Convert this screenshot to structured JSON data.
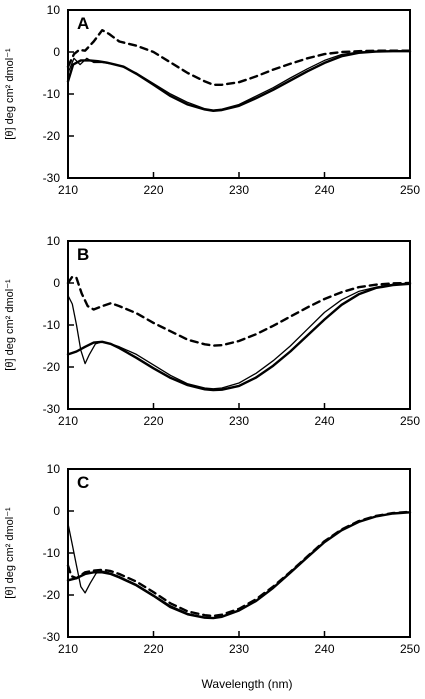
{
  "figure": {
    "xlabel": "Wavelength (nm)"
  },
  "chart_data": [
    {
      "type": "line",
      "panel_label": "A",
      "ylabel": "[θ] deg cm² dmol⁻¹",
      "xlim": [
        210,
        250
      ],
      "ylim": [
        -30,
        10
      ],
      "x_ticks": [
        210,
        220,
        230,
        240,
        250
      ],
      "y_ticks": [
        10,
        0,
        -10,
        -20,
        -30
      ],
      "grid": false,
      "series": [
        {
          "style": "dashed",
          "x": [
            210,
            210.7,
            211.3,
            212,
            213,
            214,
            214.8,
            216,
            218,
            220,
            222,
            224,
            226,
            227,
            228,
            230,
            232,
            234,
            236,
            238,
            240,
            242,
            244,
            246,
            248,
            250
          ],
          "y": [
            -3.5,
            -0.5,
            0.5,
            0.3,
            2.5,
            5.2,
            4.3,
            2.5,
            1.5,
            0,
            -2.5,
            -5,
            -7,
            -7.8,
            -7.8,
            -7.2,
            -5.8,
            -4.2,
            -2.8,
            -1.5,
            -0.5,
            0,
            0.2,
            0.3,
            0.3,
            0.3
          ]
        },
        {
          "style": "solid-thin",
          "x": [
            210,
            210.7,
            211.4,
            212.2,
            213,
            214,
            215,
            216,
            218,
            220,
            222,
            224,
            226,
            227,
            228,
            230,
            232,
            234,
            236,
            238,
            240,
            242,
            244,
            246,
            248,
            250
          ],
          "y": [
            -5,
            -1.5,
            -3,
            -1.5,
            -2.5,
            -2.5,
            -2.8,
            -3.2,
            -5,
            -7.5,
            -10,
            -12,
            -13.5,
            -13.8,
            -13.6,
            -12.5,
            -10.5,
            -8.5,
            -6.2,
            -4,
            -2,
            -0.6,
            0,
            0.2,
            0.2,
            0.2
          ]
        },
        {
          "style": "solid-thick",
          "x": [
            210,
            210.6,
            211.5,
            212.5,
            213.5,
            214.5,
            215.5,
            216.5,
            218,
            220,
            222,
            224,
            226,
            227,
            228,
            230,
            232,
            234,
            236,
            238,
            240,
            242,
            244,
            246,
            248,
            250
          ],
          "y": [
            -7,
            -3,
            -2,
            -2,
            -2.2,
            -2.5,
            -3,
            -3.5,
            -5.2,
            -7.8,
            -10.5,
            -12.5,
            -13.7,
            -14,
            -13.8,
            -12.8,
            -11,
            -9,
            -6.8,
            -4.6,
            -2.6,
            -1,
            -0.2,
            0.1,
            0.2,
            0.2
          ]
        }
      ]
    },
    {
      "type": "line",
      "panel_label": "B",
      "ylabel": "[θ] deg cm² dmol⁻¹",
      "xlim": [
        210,
        250
      ],
      "ylim": [
        -30,
        10
      ],
      "x_ticks": [
        210,
        220,
        230,
        240,
        250
      ],
      "y_ticks": [
        10,
        0,
        -10,
        -20,
        -30
      ],
      "grid": false,
      "series": [
        {
          "style": "dashed",
          "x": [
            210,
            210.5,
            211,
            211.6,
            212.3,
            213,
            214,
            215,
            216,
            218,
            220,
            222,
            224,
            226,
            227,
            228,
            230,
            232,
            234,
            236,
            238,
            240,
            242,
            244,
            246,
            248,
            250
          ],
          "y": [
            0,
            1.5,
            1.2,
            -2.5,
            -5.5,
            -6.3,
            -5.5,
            -4.8,
            -5.5,
            -7.2,
            -9.5,
            -11.5,
            -13.5,
            -14.6,
            -14.9,
            -14.8,
            -13.8,
            -12.2,
            -10.2,
            -8,
            -5.8,
            -3.8,
            -2.2,
            -1,
            -0.4,
            -0.1,
            0
          ]
        },
        {
          "style": "solid-thin",
          "x": [
            210,
            210.5,
            211,
            211.5,
            212,
            212.5,
            213.2,
            214,
            215,
            216,
            218,
            220,
            222,
            224,
            226,
            227,
            228,
            230,
            232,
            234,
            236,
            238,
            240,
            242,
            244,
            246,
            248,
            250
          ],
          "y": [
            -3,
            -5,
            -10,
            -16,
            -19.2,
            -17,
            -14.5,
            -14,
            -14.5,
            -15.2,
            -17,
            -19.5,
            -22,
            -24,
            -25,
            -25.2,
            -25,
            -23.8,
            -21.5,
            -18.5,
            -15,
            -11,
            -7,
            -4,
            -2,
            -1,
            -0.3,
            0
          ]
        },
        {
          "style": "solid-thick",
          "x": [
            210,
            211,
            212,
            213,
            214,
            215,
            216,
            218,
            220,
            222,
            224,
            226,
            227,
            228,
            230,
            232,
            234,
            236,
            238,
            240,
            242,
            244,
            246,
            248,
            250
          ],
          "y": [
            -17,
            -16.3,
            -15.2,
            -14.2,
            -14,
            -14.5,
            -15.5,
            -17.8,
            -20.3,
            -22.6,
            -24.3,
            -25.3,
            -25.5,
            -25.4,
            -24.5,
            -22.5,
            -19.7,
            -16.3,
            -12.5,
            -8.7,
            -5.2,
            -2.7,
            -1.2,
            -0.5,
            -0.2
          ]
        }
      ]
    },
    {
      "type": "line",
      "panel_label": "C",
      "ylabel": "[θ] deg cm² dmol⁻¹",
      "xlim": [
        210,
        250
      ],
      "ylim": [
        -30,
        10
      ],
      "x_ticks": [
        210,
        220,
        230,
        240,
        250
      ],
      "y_ticks": [
        10,
        0,
        -10,
        -20,
        -30
      ],
      "grid": false,
      "series": [
        {
          "style": "dashed",
          "x": [
            210,
            210.4,
            211,
            212,
            213,
            214,
            215,
            216,
            218,
            220,
            222,
            224,
            226,
            227,
            228,
            230,
            232,
            234,
            236,
            238,
            240,
            242,
            244,
            246,
            248,
            250
          ],
          "y": [
            -13,
            -15.5,
            -16,
            -14.6,
            -14.2,
            -14,
            -14.3,
            -15,
            -16.8,
            -19.3,
            -22,
            -23.9,
            -24.8,
            -25,
            -24.7,
            -23.3,
            -21,
            -18,
            -14.5,
            -10.8,
            -7.2,
            -4.4,
            -2.4,
            -1.2,
            -0.5,
            -0.2
          ]
        },
        {
          "style": "solid-thin",
          "x": [
            210,
            210.5,
            211,
            211.5,
            212,
            212.6,
            213.3,
            214,
            215,
            216,
            218,
            220,
            222,
            224,
            226,
            227,
            228,
            230,
            232,
            234,
            236,
            238,
            240,
            242,
            244,
            246,
            248,
            250
          ],
          "y": [
            -3,
            -8,
            -13,
            -18,
            -19.5,
            -17.2,
            -14.8,
            -14.3,
            -14.8,
            -15.6,
            -17.5,
            -20,
            -22.6,
            -24.4,
            -25.3,
            -25.4,
            -25.1,
            -23.6,
            -21.3,
            -18.2,
            -14.6,
            -10.9,
            -7.3,
            -4.5,
            -2.5,
            -1.3,
            -0.6,
            -0.3
          ]
        },
        {
          "style": "solid-thick",
          "x": [
            210,
            211,
            212,
            213,
            214,
            215,
            216,
            218,
            220,
            222,
            224,
            226,
            227,
            228,
            230,
            232,
            234,
            236,
            238,
            240,
            242,
            244,
            246,
            248,
            250
          ],
          "y": [
            -16.5,
            -16,
            -15,
            -14.6,
            -14.6,
            -15,
            -15.8,
            -17.7,
            -20.2,
            -22.9,
            -24.6,
            -25.4,
            -25.5,
            -25.2,
            -23.7,
            -21.4,
            -18.3,
            -14.7,
            -11,
            -7.4,
            -4.6,
            -2.6,
            -1.3,
            -0.6,
            -0.3
          ]
        }
      ]
    }
  ]
}
